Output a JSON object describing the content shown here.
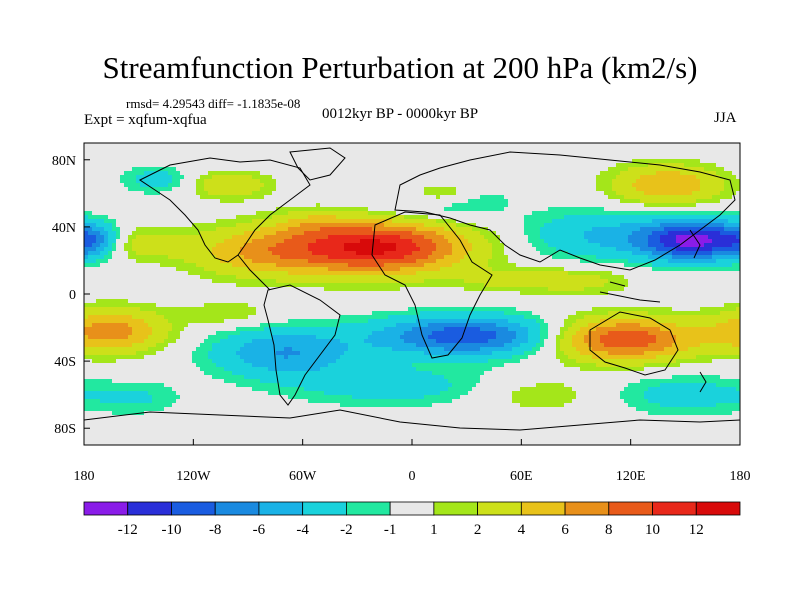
{
  "chart_data": {
    "type": "heatmap",
    "title": "Streamfunction Perturbation at 200 hPa (km2/s)",
    "stats": "rmsd= 4.29543 diff= -1.1835e-08",
    "experiment": "Expt = xqfum-xqfua",
    "period": "0012kyr BP - 0000kyr BP",
    "season": "JJA",
    "x_ticks": [
      "180",
      "120W",
      "60W",
      "0",
      "60E",
      "120E",
      "180"
    ],
    "x_range": [
      -180,
      180
    ],
    "y_ticks": [
      "80N",
      "40N",
      "0",
      "40S",
      "80S"
    ],
    "y_range": [
      -90,
      90
    ],
    "colorbar": {
      "labels": [
        "-12",
        "-10",
        "-8",
        "-6",
        "-4",
        "-2",
        "-1",
        "1",
        "2",
        "4",
        "6",
        "8",
        "10",
        "12"
      ],
      "levels": [
        -12,
        -10,
        -8,
        -6,
        -4,
        -2,
        -1,
        1,
        2,
        4,
        6,
        8,
        10,
        12
      ],
      "colors": [
        "#8a1ce8",
        "#2a2fd8",
        "#1a5ce0",
        "#1a8ae0",
        "#1ab2e6",
        "#1ad2dc",
        "#22e8a0",
        "#e8e8e8",
        "#a4e61a",
        "#cde01a",
        "#e8c21a",
        "#e8901a",
        "#e85a1a",
        "#e8281a",
        "#d80a0a"
      ]
    },
    "anomalies": [
      {
        "lon": -20,
        "lat": 28,
        "value": 12.5,
        "rlon": 50,
        "rlat": 16
      },
      {
        "lon": -85,
        "lat": 25,
        "value": 5,
        "rlon": 38,
        "rlat": 15
      },
      {
        "lon": -150,
        "lat": 30,
        "value": 3,
        "rlon": 25,
        "rlat": 10
      },
      {
        "lon": -175,
        "lat": 32,
        "value": -5,
        "rlon": 14,
        "rlat": 10
      },
      {
        "lon": 155,
        "lat": 32,
        "value": -12.5,
        "rlon": 30,
        "rlat": 12
      },
      {
        "lon": 100,
        "lat": 35,
        "value": -4,
        "rlon": 40,
        "rlat": 15
      },
      {
        "lon": 15,
        "lat": 55,
        "value": -3,
        "rlon": 35,
        "rlat": 12
      },
      {
        "lon": 140,
        "lat": 65,
        "value": 6,
        "rlon": 30,
        "rlat": 12
      },
      {
        "lon": 15,
        "lat": 60,
        "value": 4,
        "rlon": 18,
        "rlat": 7
      },
      {
        "lon": -100,
        "lat": 65,
        "value": 4,
        "rlon": 22,
        "rlat": 8
      },
      {
        "lon": -140,
        "lat": 68,
        "value": -3,
        "rlon": 20,
        "rlat": 8
      },
      {
        "lon": 90,
        "lat": 8,
        "value": 3,
        "rlon": 30,
        "rlat": 8
      },
      {
        "lon": 30,
        "lat": -25,
        "value": -9.5,
        "rlon": 50,
        "rlat": 12
      },
      {
        "lon": -70,
        "lat": -35,
        "value": -6,
        "rlon": 40,
        "rlat": 15
      },
      {
        "lon": 115,
        "lat": -27,
        "value": 10,
        "rlon": 40,
        "rlat": 13
      },
      {
        "lon": -165,
        "lat": -22,
        "value": 7,
        "rlon": 30,
        "rlat": 13
      },
      {
        "lon": -10,
        "lat": -55,
        "value": -3,
        "rlon": 55,
        "rlat": 12
      },
      {
        "lon": 150,
        "lat": -60,
        "value": -3,
        "rlon": 40,
        "rlat": 12
      },
      {
        "lon": -150,
        "lat": -62,
        "value": -2,
        "rlon": 25,
        "rlat": 10
      },
      {
        "lon": -55,
        "lat": 42,
        "value": 2,
        "rlon": 18,
        "rlat": 8
      },
      {
        "lon": 70,
        "lat": -60,
        "value": 2,
        "rlon": 35,
        "rlat": 10
      },
      {
        "lon": -100,
        "lat": -12,
        "value": 2,
        "rlon": 25,
        "rlat": 8
      },
      {
        "lon": 50,
        "lat": 8,
        "value": 2,
        "rlon": 25,
        "rlat": 7
      }
    ]
  }
}
